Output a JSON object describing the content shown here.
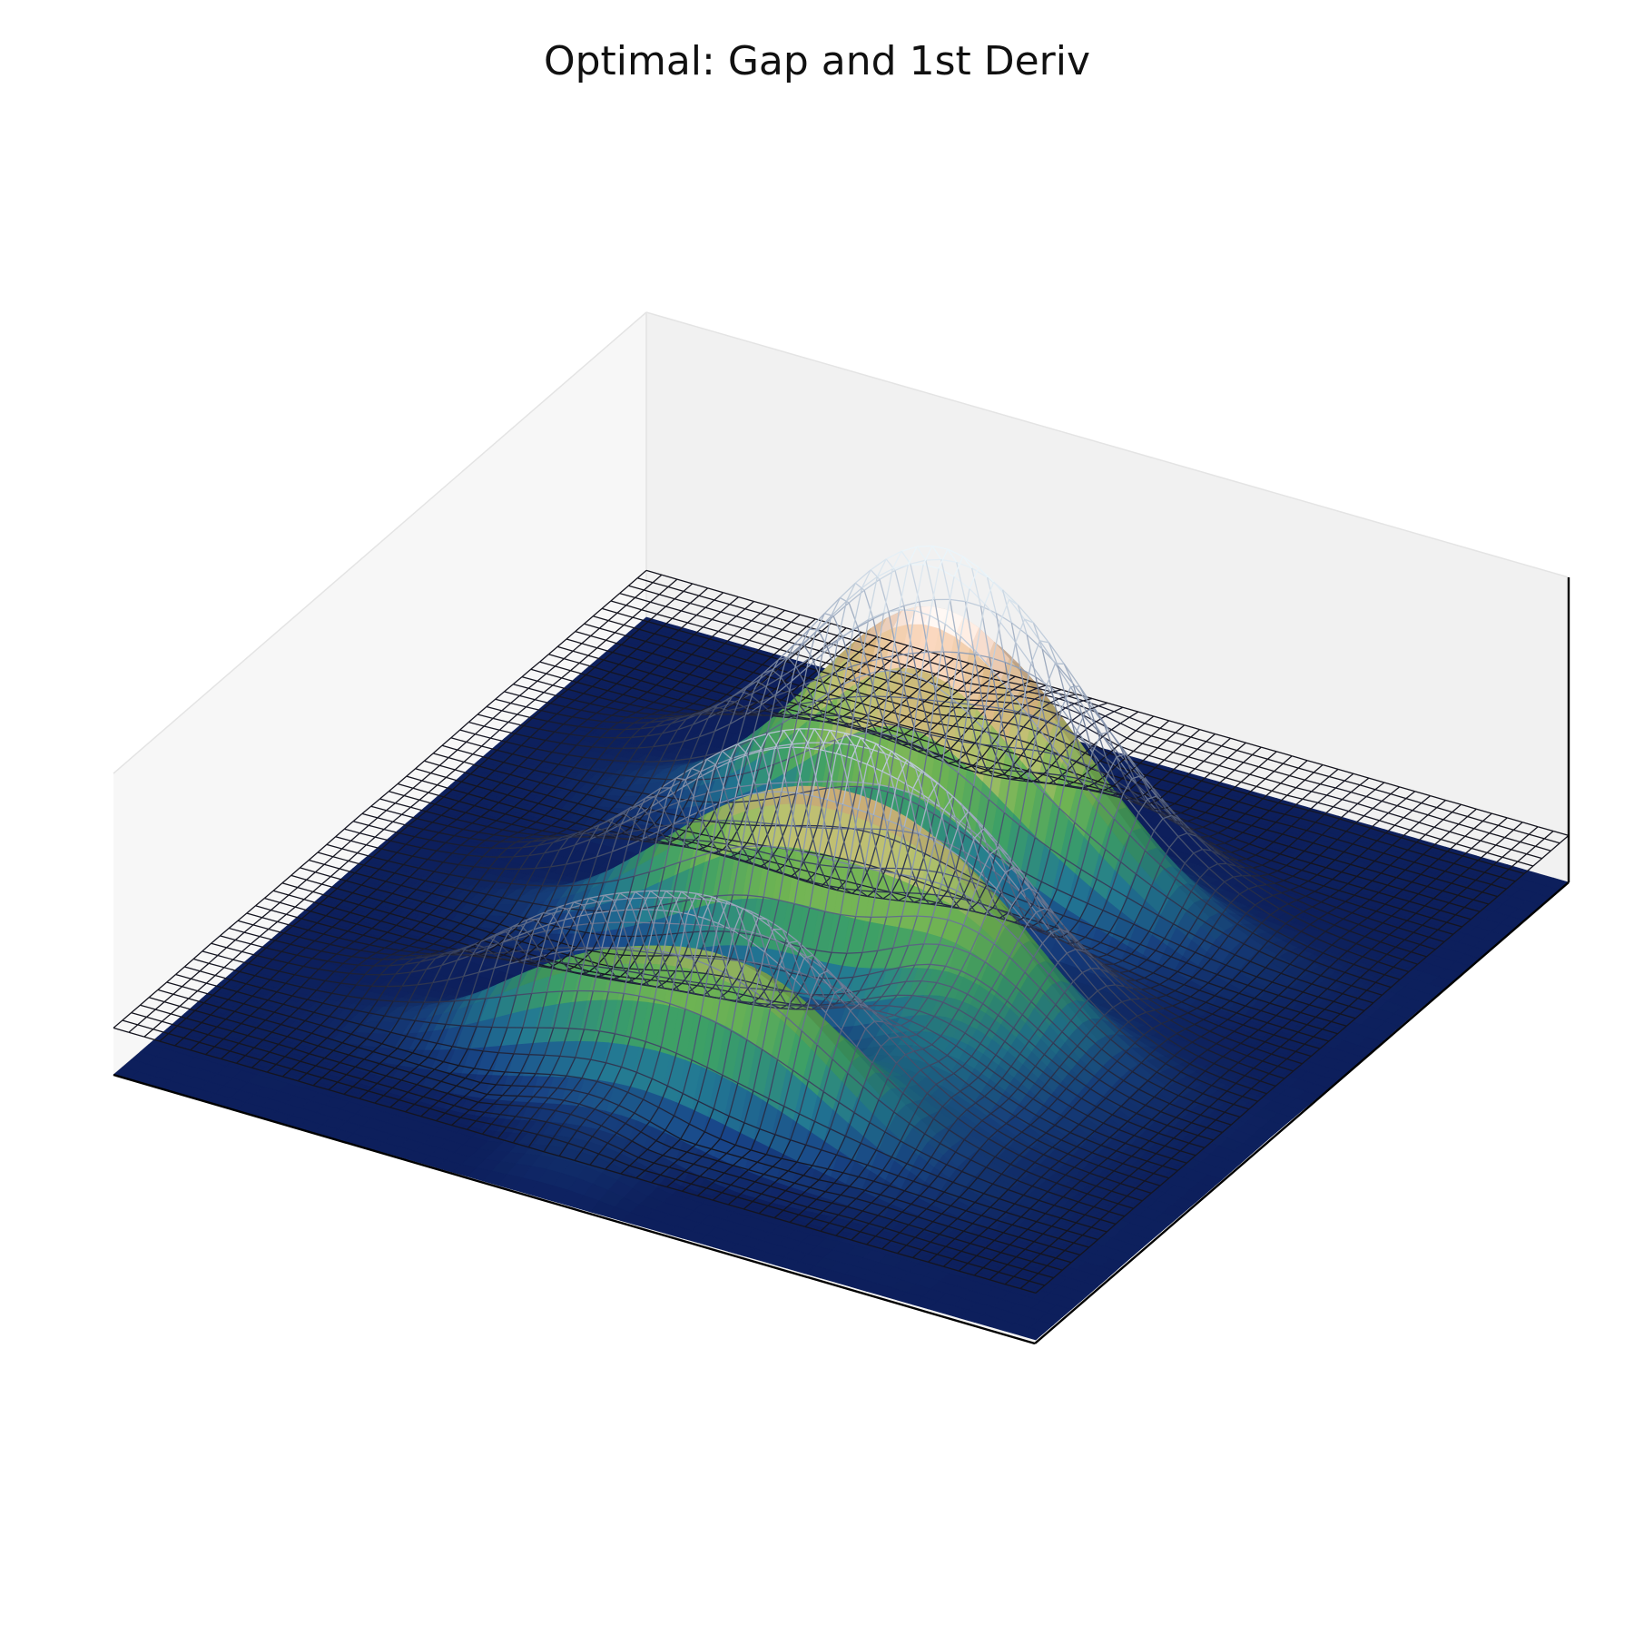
{
  "chart_data": {
    "type": "surface3d",
    "title": "Optimal: Gap and 1st Deriv",
    "xlabel": "",
    "ylabel": "",
    "zlabel": "",
    "axis_ticks_visible": false,
    "grid": false,
    "colormap": "gist_earth",
    "wireframe_colormap": "bone",
    "series": [
      {
        "kind": "surface",
        "description_of_shape": "flat base with three parallel ridges along y, a tall front ridge at x ~ 0.3, a second at x ~ 0.55 and a third at x ~ 0.8, peak near y ~ 0.5"
      },
      {
        "kind": "wireframe",
        "offset_above_surface": true
      }
    ],
    "grid_size": [
      60,
      60
    ],
    "x_range": [
      0,
      1
    ],
    "y_range": [
      0,
      1
    ]
  },
  "colors": {
    "pane_left": "#f7f7f7",
    "pane_right": "#f1f1f1",
    "pane_floor": "#f4f4f4",
    "axis_line": "#000000",
    "surface_base": "#0d1f5c"
  }
}
